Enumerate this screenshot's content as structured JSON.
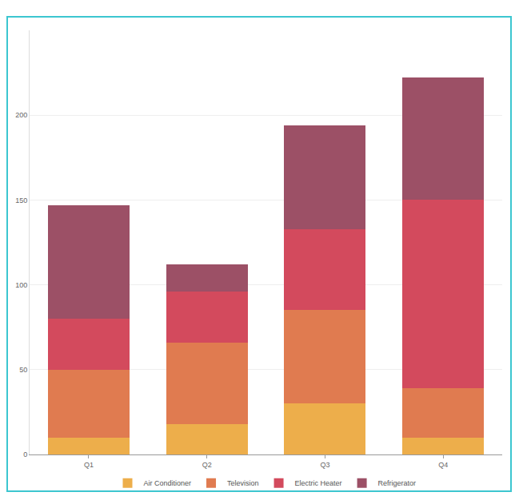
{
  "chart_data": {
    "type": "bar",
    "stacked": true,
    "categories": [
      "Q1",
      "Q2",
      "Q3",
      "Q4"
    ],
    "series": [
      {
        "name": "Air Conditioner",
        "color": "#edae4b",
        "values": [
          10,
          18,
          30,
          10
        ]
      },
      {
        "name": "Television",
        "color": "#e07b50",
        "values": [
          40,
          48,
          55,
          29
        ]
      },
      {
        "name": "Electric Heater",
        "color": "#d34a5d",
        "values": [
          30,
          30,
          48,
          111
        ]
      },
      {
        "name": "Refrigerator",
        "color": "#9c5066",
        "values": [
          67,
          16,
          61,
          72
        ]
      }
    ],
    "ylim": [
      0,
      250
    ],
    "yticks": [
      0,
      50,
      100,
      150,
      200
    ],
    "grid": true,
    "legend": "bottom"
  }
}
